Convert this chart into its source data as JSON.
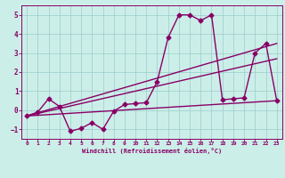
{
  "xlabel": "Windchill (Refroidissement éolien,°C)",
  "xlim": [
    -0.5,
    23.5
  ],
  "ylim": [
    -1.5,
    5.5
  ],
  "yticks": [
    -1,
    0,
    1,
    2,
    3,
    4,
    5
  ],
  "xticks": [
    0,
    1,
    2,
    3,
    4,
    5,
    6,
    7,
    8,
    9,
    10,
    11,
    12,
    13,
    14,
    15,
    16,
    17,
    18,
    19,
    20,
    21,
    22,
    23
  ],
  "bg_color": "#cceee8",
  "line_color": "#880066",
  "grid_color": "#99cccc",
  "series": [
    {
      "x": [
        0,
        1,
        2,
        3,
        4,
        5,
        6,
        7,
        8,
        9,
        10,
        11,
        12,
        13,
        14,
        15,
        16,
        17,
        18,
        19,
        20,
        21,
        22,
        23
      ],
      "y": [
        -0.3,
        -0.1,
        0.6,
        0.2,
        -1.1,
        -0.95,
        -0.65,
        -1.0,
        -0.05,
        0.3,
        0.35,
        0.4,
        1.5,
        3.8,
        5.0,
        5.0,
        4.7,
        5.0,
        0.55,
        0.6,
        0.65,
        3.0,
        3.5,
        0.5
      ],
      "marker": "D",
      "markersize": 2.5,
      "linewidth": 1.0
    },
    {
      "x": [
        0,
        23
      ],
      "y": [
        -0.3,
        3.5
      ],
      "marker": null,
      "linewidth": 1.0
    },
    {
      "x": [
        0,
        23
      ],
      "y": [
        -0.3,
        0.5
      ],
      "marker": null,
      "linewidth": 1.0
    },
    {
      "x": [
        0,
        23
      ],
      "y": [
        -0.3,
        2.7
      ],
      "marker": null,
      "linewidth": 1.0
    }
  ]
}
